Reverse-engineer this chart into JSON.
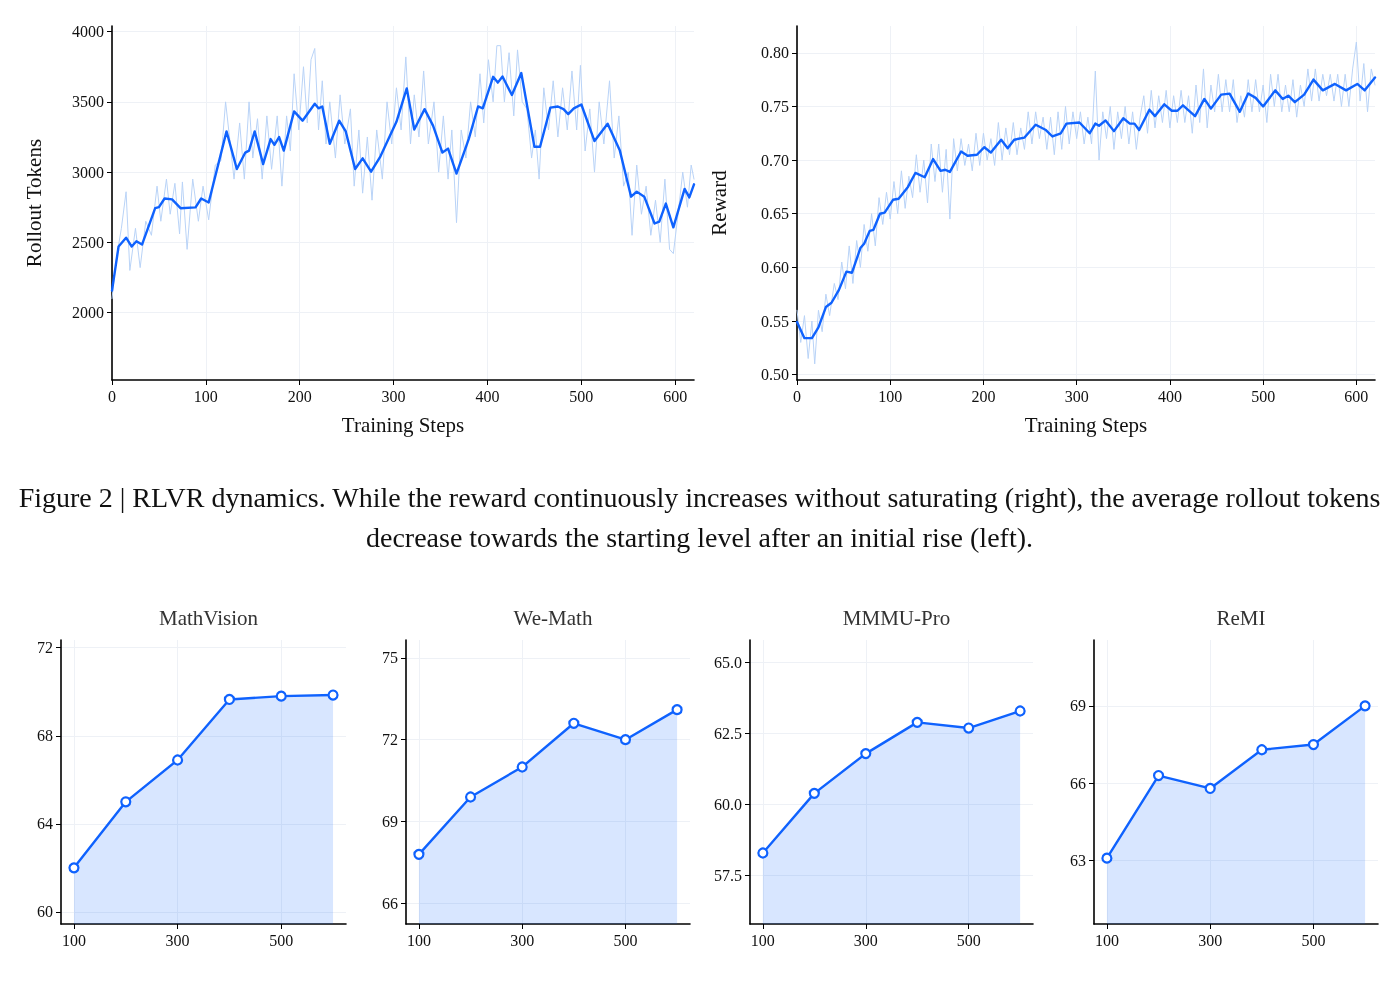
{
  "chart_data": [
    {
      "type": "line",
      "xlabel": "Training Steps",
      "ylabel": "Rollout Tokens",
      "xlim": [
        0,
        620
      ],
      "ylim": [
        1520,
        4040
      ],
      "xticks": [
        0,
        100,
        200,
        300,
        400,
        500,
        600
      ],
      "yticks": [
        2000,
        2500,
        3000,
        3500,
        4000
      ],
      "grid": true,
      "marker": "none",
      "line_style": "solid",
      "annotations": [
        "Figure 2 | RLVR dynamics. While the reward continuously increases without saturating (right), the average rollout tokens decrease towards the starting level after an initial rise (left)."
      ],
      "series": [
        {
          "color": "#b9d3f7",
          "x": [
            0,
            5,
            10,
            15,
            19,
            25,
            30,
            36,
            42,
            48,
            52,
            58,
            62,
            67,
            72,
            75,
            80,
            86,
            92,
            97,
            103,
            110,
            116,
            121,
            126,
            130,
            136,
            141,
            146,
            150,
            155,
            160,
            165,
            170,
            176,
            181,
            186,
            190,
            194,
            199,
            204,
            208,
            212,
            216,
            220,
            224,
            228,
            232,
            238,
            243,
            248,
            254,
            258,
            263,
            267,
            272,
            277,
            282,
            288,
            293,
            298,
            303,
            308,
            313,
            318,
            322,
            327,
            332,
            337,
            343,
            348,
            353,
            358,
            362,
            367,
            372,
            377,
            382,
            387,
            392,
            396,
            401,
            406,
            410,
            414,
            418,
            423,
            428,
            432,
            437,
            442,
            447,
            451,
            455,
            460,
            465,
            470,
            475,
            480,
            485,
            490,
            495,
            499,
            504,
            509,
            514,
            519,
            524,
            530,
            535,
            540,
            545,
            550,
            554,
            559,
            564,
            569,
            574,
            579,
            584,
            589,
            594,
            598,
            603,
            608,
            613,
            617,
            620
          ],
          "values": [
            2100,
            2400,
            2600,
            2860,
            2300,
            2600,
            2320,
            2650,
            2550,
            2900,
            2650,
            2950,
            2700,
            2920,
            2560,
            2930,
            2450,
            2950,
            2650,
            2900,
            2660,
            3050,
            3080,
            3500,
            3200,
            2950,
            3350,
            2950,
            3500,
            3100,
            3380,
            2950,
            3400,
            3020,
            3400,
            2900,
            3400,
            3150,
            3700,
            3300,
            3750,
            3350,
            3800,
            3880,
            3300,
            3650,
            3200,
            3500,
            3100,
            3550,
            3200,
            3450,
            2900,
            3300,
            2850,
            3250,
            2800,
            3300,
            2950,
            3500,
            3200,
            3600,
            3300,
            3820,
            3200,
            3550,
            3250,
            3720,
            3200,
            3500,
            3000,
            3400,
            2950,
            3300,
            2640,
            3300,
            3100,
            3500,
            3250,
            3700,
            3350,
            3800,
            3500,
            3900,
            3900,
            3500,
            3850,
            3400,
            3870,
            3500,
            3450,
            3100,
            3300,
            2950,
            3600,
            3300,
            3650,
            3250,
            3600,
            3300,
            3720,
            3300,
            3760,
            3150,
            3450,
            3000,
            3500,
            3200,
            3650,
            3100,
            3400,
            2900,
            3000,
            2550,
            3050,
            2700,
            2900,
            2550,
            2800,
            2500,
            2950,
            2450,
            2420,
            2700,
            3000,
            2750,
            3050,
            2950
          ]
        },
        {
          "color": "#0f62fe",
          "x": [
            0,
            7,
            15,
            21,
            26,
            32,
            46,
            50,
            56,
            64,
            73,
            89,
            95,
            103,
            122,
            133,
            142,
            146,
            152,
            161,
            169,
            173,
            178,
            183,
            194,
            203,
            216,
            220,
            224,
            232,
            242,
            249,
            259,
            267,
            276,
            286,
            303,
            314,
            322,
            333,
            342,
            352,
            358,
            367,
            380,
            390,
            395,
            406,
            411,
            416,
            426,
            436,
            450,
            456,
            467,
            475,
            481,
            486,
            492,
            500,
            514,
            528,
            541,
            553,
            559,
            567,
            578,
            583,
            590,
            598,
            610,
            615,
            620
          ],
          "values": [
            2156,
            2470,
            2533,
            2470,
            2508,
            2484,
            2743,
            2751,
            2812,
            2806,
            2743,
            2749,
            2812,
            2784,
            3290,
            3022,
            3139,
            3153,
            3290,
            3057,
            3235,
            3194,
            3249,
            3153,
            3432,
            3366,
            3486,
            3454,
            3467,
            3202,
            3366,
            3290,
            3022,
            3098,
            3003,
            3112,
            3358,
            3596,
            3303,
            3448,
            3331,
            3139,
            3167,
            2989,
            3235,
            3467,
            3454,
            3678,
            3637,
            3680,
            3549,
            3705,
            3180,
            3180,
            3459,
            3467,
            3448,
            3413,
            3454,
            3481,
            3221,
            3344,
            3153,
            2825,
            2861,
            2825,
            2634,
            2648,
            2776,
            2607,
            2880,
            2820,
            2913
          ]
        }
      ]
    },
    {
      "type": "line",
      "xlabel": "Training Steps",
      "ylabel": "Reward",
      "xlim": [
        0,
        620
      ],
      "ylim": [
        0.495,
        0.825
      ],
      "xticks": [
        0,
        100,
        200,
        300,
        400,
        500,
        600
      ],
      "yticks": [
        {
          "value": 0.5,
          "label": "0.50"
        },
        {
          "value": 0.55,
          "label": "0.55"
        },
        {
          "value": 0.6,
          "label": "0.60"
        },
        {
          "value": 0.65,
          "label": "0.65"
        },
        {
          "value": 0.7,
          "label": "0.70"
        },
        {
          "value": 0.75,
          "label": "0.75"
        },
        {
          "value": 0.8,
          "label": "0.80"
        }
      ],
      "grid": true,
      "marker": "none",
      "line_style": "solid",
      "series": [
        {
          "color": "#b9d3f7",
          "x": [
            0,
            4,
            8,
            12,
            16,
            19,
            23,
            27,
            31,
            35,
            40,
            44,
            48,
            52,
            56,
            60,
            64,
            68,
            72,
            76,
            80,
            84,
            88,
            92,
            96,
            100,
            104,
            108,
            112,
            116,
            120,
            124,
            128,
            132,
            136,
            140,
            144,
            148,
            152,
            156,
            160,
            164,
            168,
            172,
            176,
            180,
            184,
            188,
            192,
            196,
            200,
            204,
            208,
            212,
            216,
            220,
            224,
            228,
            232,
            236,
            240,
            244,
            248,
            252,
            256,
            260,
            264,
            268,
            272,
            276,
            280,
            284,
            288,
            292,
            296,
            300,
            304,
            308,
            312,
            316,
            320,
            324,
            328,
            332,
            336,
            340,
            344,
            348,
            352,
            356,
            360,
            364,
            368,
            372,
            376,
            380,
            384,
            388,
            392,
            396,
            400,
            404,
            408,
            412,
            416,
            420,
            424,
            428,
            432,
            436,
            440,
            444,
            448,
            452,
            456,
            460,
            464,
            468,
            472,
            476,
            480,
            484,
            488,
            492,
            496,
            500,
            504,
            508,
            512,
            516,
            520,
            524,
            528,
            532,
            536,
            540,
            544,
            548,
            552,
            556,
            560,
            564,
            568,
            572,
            576,
            580,
            584,
            588,
            592,
            596,
            600,
            604,
            608,
            612,
            616,
            620
          ],
          "values": [
            0.56,
            0.53,
            0.555,
            0.515,
            0.55,
            0.51,
            0.56,
            0.54,
            0.575,
            0.555,
            0.585,
            0.57,
            0.605,
            0.58,
            0.62,
            0.585,
            0.625,
            0.6,
            0.64,
            0.615,
            0.65,
            0.62,
            0.665,
            0.64,
            0.67,
            0.645,
            0.68,
            0.65,
            0.69,
            0.655,
            0.685,
            0.665,
            0.705,
            0.67,
            0.7,
            0.66,
            0.715,
            0.68,
            0.715,
            0.67,
            0.71,
            0.645,
            0.72,
            0.69,
            0.72,
            0.695,
            0.715,
            0.69,
            0.725,
            0.695,
            0.725,
            0.7,
            0.72,
            0.695,
            0.735,
            0.7,
            0.73,
            0.705,
            0.735,
            0.705,
            0.73,
            0.71,
            0.745,
            0.715,
            0.745,
            0.72,
            0.74,
            0.71,
            0.74,
            0.705,
            0.745,
            0.71,
            0.75,
            0.715,
            0.745,
            0.72,
            0.745,
            0.715,
            0.74,
            0.715,
            0.783,
            0.7,
            0.745,
            0.72,
            0.75,
            0.71,
            0.745,
            0.72,
            0.75,
            0.715,
            0.745,
            0.71,
            0.74,
            0.76,
            0.725,
            0.765,
            0.73,
            0.76,
            0.735,
            0.765,
            0.73,
            0.76,
            0.735,
            0.765,
            0.735,
            0.76,
            0.725,
            0.77,
            0.735,
            0.785,
            0.73,
            0.77,
            0.745,
            0.78,
            0.745,
            0.775,
            0.745,
            0.775,
            0.735,
            0.76,
            0.74,
            0.775,
            0.745,
            0.775,
            0.745,
            0.77,
            0.735,
            0.78,
            0.75,
            0.78,
            0.745,
            0.77,
            0.745,
            0.775,
            0.74,
            0.77,
            0.75,
            0.785,
            0.755,
            0.785,
            0.755,
            0.78,
            0.76,
            0.78,
            0.755,
            0.78,
            0.75,
            0.78,
            0.75,
            0.785,
            0.81,
            0.755,
            0.79,
            0.745,
            0.785,
            0.77
          ]
        },
        {
          "color": "#0f62fe",
          "x": [
            0,
            8,
            16,
            23,
            31,
            37,
            45,
            53,
            59,
            68,
            72,
            78,
            82,
            89,
            94,
            103,
            109,
            119,
            127,
            137,
            146,
            154,
            159,
            164,
            176,
            183,
            193,
            201,
            208,
            219,
            226,
            233,
            244,
            256,
            267,
            274,
            283,
            289,
            303,
            314,
            320,
            324,
            331,
            340,
            350,
            357,
            362,
            367,
            378,
            384,
            394,
            402,
            408,
            414,
            427,
            437,
            444,
            455,
            464,
            475,
            484,
            492,
            500,
            513,
            521,
            527,
            534,
            544,
            554,
            564,
            577,
            589,
            601,
            609,
            620
          ],
          "values": [
            0.549,
            0.534,
            0.534,
            0.544,
            0.563,
            0.567,
            0.579,
            0.596,
            0.595,
            0.618,
            0.622,
            0.634,
            0.635,
            0.65,
            0.651,
            0.663,
            0.664,
            0.675,
            0.688,
            0.684,
            0.701,
            0.69,
            0.691,
            0.689,
            0.708,
            0.704,
            0.705,
            0.712,
            0.707,
            0.719,
            0.711,
            0.719,
            0.721,
            0.733,
            0.728,
            0.722,
            0.725,
            0.734,
            0.735,
            0.725,
            0.734,
            0.732,
            0.737,
            0.727,
            0.739,
            0.734,
            0.734,
            0.728,
            0.747,
            0.741,
            0.752,
            0.746,
            0.746,
            0.751,
            0.741,
            0.757,
            0.748,
            0.761,
            0.762,
            0.745,
            0.762,
            0.758,
            0.75,
            0.765,
            0.757,
            0.76,
            0.754,
            0.761,
            0.775,
            0.765,
            0.771,
            0.765,
            0.771,
            0.765,
            0.777
          ]
        }
      ]
    },
    {
      "type": "area",
      "title": "MathVision",
      "x": [
        100,
        200,
        300,
        400,
        500,
        600
      ],
      "values": [
        62.0,
        65.0,
        66.9,
        69.65,
        69.8,
        69.85
      ],
      "color": "#0f62fe",
      "xlim": [
        75,
        625
      ],
      "ylim": [
        59.45,
        72.35
      ],
      "xticks": [
        100,
        300,
        500
      ],
      "yticks": [
        60,
        64,
        68,
        72
      ],
      "grid": true,
      "marker": "circle"
    },
    {
      "type": "area",
      "title": "We-Math",
      "x": [
        100,
        200,
        300,
        400,
        500,
        600
      ],
      "values": [
        67.8,
        69.9,
        71.0,
        72.6,
        72.0,
        73.1
      ],
      "color": "#0f62fe",
      "xlim": [
        75,
        625
      ],
      "ylim": [
        65.25,
        75.65
      ],
      "xticks": [
        100,
        300,
        500
      ],
      "yticks": [
        66,
        69,
        72,
        75
      ],
      "grid": true,
      "marker": "circle"
    },
    {
      "type": "area",
      "title": "MMMU-Pro",
      "x": [
        100,
        200,
        300,
        400,
        500,
        600
      ],
      "values": [
        58.3,
        60.4,
        61.8,
        62.9,
        62.7,
        63.3
      ],
      "color": "#0f62fe",
      "xlim": [
        75,
        625
      ],
      "ylim": [
        55.8,
        65.8
      ],
      "xticks": [
        100,
        300,
        500
      ],
      "yticks": [
        {
          "value": 57.5,
          "label": "57.5"
        },
        {
          "value": 60,
          "label": "60.0"
        },
        {
          "value": 62.5,
          "label": "62.5"
        },
        {
          "value": 65,
          "label": "65.0"
        }
      ],
      "grid": true,
      "marker": "circle"
    },
    {
      "type": "area",
      "title": "ReMI",
      "x": [
        100,
        200,
        300,
        400,
        500,
        600
      ],
      "values": [
        63.1,
        66.3,
        65.8,
        67.3,
        67.5,
        69.0
      ],
      "color": "#0f62fe",
      "xlim": [
        75,
        625
      ],
      "ylim": [
        60.55,
        71.55
      ],
      "xticks": [
        100,
        300,
        500
      ],
      "yticks": [
        63,
        66,
        69
      ],
      "grid": true,
      "marker": "circle"
    }
  ]
}
